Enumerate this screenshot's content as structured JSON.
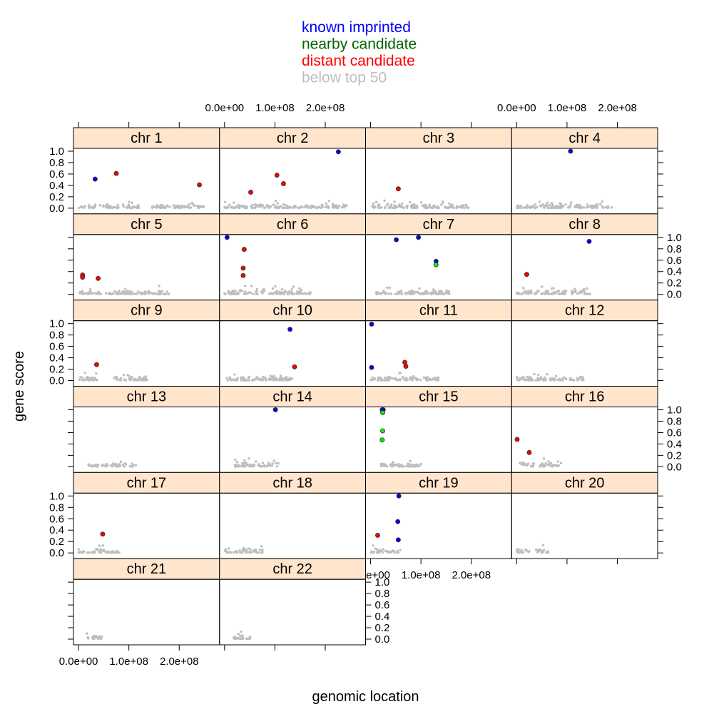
{
  "chart_data": {
    "type": "scatter",
    "layout": {
      "columns": 4,
      "rows": 6
    },
    "xlabel": "genomic location",
    "ylabel": "gene score",
    "xlim": [
      -10000000.0,
      280000000.0
    ],
    "ylim": [
      -0.1,
      1.05
    ],
    "x_ticks": [
      0,
      100000000,
      200000000
    ],
    "x_tick_labels": [
      "0.0e+00",
      "1.0e+08",
      "2.0e+08"
    ],
    "y_ticks": [
      0.0,
      0.2,
      0.4,
      0.6,
      0.8,
      1.0
    ],
    "y_tick_labels": [
      "0.0",
      "0.2",
      "0.4",
      "0.6",
      "0.8",
      "1.0"
    ],
    "strip_color": "#ffe5cc",
    "legend_position": "top",
    "legend": [
      {
        "label": "known imprinted",
        "color": "#0000ff"
      },
      {
        "label": "nearby candidate",
        "color": "#006400"
      },
      {
        "label": "distant candidate",
        "color": "#ff0000"
      },
      {
        "label": "below top 50",
        "color": "#bebebe"
      }
    ],
    "point_colors": {
      "known": "#0000ff",
      "nearby": "#00ff00",
      "distant": "#ff0000",
      "below": "#bebebe"
    },
    "panels": [
      {
        "label": "chr 1",
        "length": 249000000,
        "points": [
          [
            33000000,
            0.51,
            "known"
          ],
          [
            75000000,
            0.61,
            "distant"
          ],
          [
            240000000,
            0.41,
            "distant"
          ]
        ],
        "gaps": [
          [
            120000000,
            145000000
          ]
        ]
      },
      {
        "label": "chr 2",
        "length": 243000000,
        "points": [
          [
            226000000,
            0.99,
            "known"
          ],
          [
            52000000,
            0.28,
            "distant"
          ],
          [
            104000000,
            0.58,
            "distant"
          ],
          [
            117000000,
            0.43,
            "distant"
          ]
        ],
        "gaps": []
      },
      {
        "label": "chr 3",
        "length": 198000000,
        "points": [
          [
            55000000,
            0.34,
            "distant"
          ]
        ],
        "gaps": []
      },
      {
        "label": "chr 4",
        "length": 191000000,
        "points": [
          [
            107000000,
            1.0,
            "known"
          ]
        ],
        "gaps": []
      },
      {
        "label": "chr 5",
        "length": 181000000,
        "points": [
          [
            8000000,
            0.34,
            "distant"
          ],
          [
            8000000,
            0.3,
            "distant"
          ],
          [
            39000000,
            0.28,
            "distant"
          ]
        ],
        "gaps": [
          [
            46000000,
            50000000
          ]
        ]
      },
      {
        "label": "chr 6",
        "length": 171000000,
        "points": [
          [
            5000000,
            1.0,
            "known"
          ],
          [
            39000000,
            0.79,
            "distant"
          ],
          [
            37000000,
            0.46,
            "distant"
          ],
          [
            37000000,
            0.33,
            "distant"
          ]
        ],
        "gaps": [
          [
            58000000,
            62000000
          ]
        ]
      },
      {
        "label": "chr 7",
        "length": 159000000,
        "points": [
          [
            51000000,
            0.96,
            "known"
          ],
          [
            95000000,
            1.0,
            "known"
          ],
          [
            130000000,
            0.58,
            "known"
          ],
          [
            130000000,
            0.52,
            "nearby"
          ]
        ],
        "gaps": []
      },
      {
        "label": "chr 8",
        "length": 146000000,
        "points": [
          [
            20000000,
            0.35,
            "distant"
          ],
          [
            144000000,
            0.93,
            "known"
          ]
        ],
        "gaps": []
      },
      {
        "label": "chr 9",
        "length": 141000000,
        "points": [
          [
            36000000,
            0.28,
            "distant"
          ]
        ],
        "gaps": [
          [
            40000000,
            68000000
          ]
        ]
      },
      {
        "label": "chr 10",
        "length": 135000000,
        "points": [
          [
            130000000,
            0.9,
            "known"
          ],
          [
            139000000,
            0.24,
            "distant"
          ]
        ],
        "gaps": []
      },
      {
        "label": "chr 11",
        "length": 135000000,
        "points": [
          [
            2000000,
            0.99,
            "known"
          ],
          [
            2000000,
            0.23,
            "known"
          ],
          [
            68000000,
            0.32,
            "distant"
          ],
          [
            70000000,
            0.25,
            "distant"
          ]
        ],
        "gaps": []
      },
      {
        "label": "chr 12",
        "length": 133000000,
        "points": [],
        "gaps": []
      },
      {
        "label": "chr 13",
        "length": 115000000,
        "points": [],
        "gaps": [
          [
            0,
            19000000
          ],
          [
            40000000,
            45000000
          ]
        ]
      },
      {
        "label": "chr 14",
        "length": 107000000,
        "points": [
          [
            101000000,
            1.0,
            "known"
          ]
        ],
        "gaps": [
          [
            0,
            20000000
          ]
        ]
      },
      {
        "label": "chr 15",
        "length": 102000000,
        "points": [
          [
            23000000,
            1.0,
            "known"
          ],
          [
            25000000,
            1.0,
            "known"
          ],
          [
            24000000,
            0.95,
            "nearby"
          ],
          [
            24000000,
            0.63,
            "nearby"
          ],
          [
            23000000,
            0.47,
            "nearby"
          ]
        ],
        "gaps": [
          [
            0,
            20000000
          ]
        ]
      },
      {
        "label": "chr 16",
        "length": 90000000,
        "points": [
          [
            1000000,
            0.48,
            "distant"
          ],
          [
            25000000,
            0.25,
            "distant"
          ]
        ],
        "gaps": [
          [
            36000000,
            46000000
          ]
        ]
      },
      {
        "label": "chr 17",
        "length": 81000000,
        "points": [
          [
            48000000,
            0.33,
            "distant"
          ]
        ],
        "gaps": []
      },
      {
        "label": "chr 18",
        "length": 78000000,
        "points": [],
        "gaps": [
          [
            15000000,
            18000000
          ]
        ]
      },
      {
        "label": "chr 19",
        "length": 59000000,
        "points": [
          [
            56000000,
            1.0,
            "known"
          ],
          [
            54000000,
            0.55,
            "known"
          ],
          [
            55000000,
            0.23,
            "known"
          ],
          [
            14000000,
            0.31,
            "distant"
          ]
        ],
        "gaps": [
          [
            25000000,
            28000000
          ]
        ]
      },
      {
        "label": "chr 20",
        "length": 63000000,
        "points": [],
        "gaps": [
          [
            26000000,
            30000000
          ]
        ]
      },
      {
        "label": "chr 21",
        "length": 48000000,
        "points": [],
        "gaps": [
          [
            0,
            15000000
          ]
        ]
      },
      {
        "label": "chr 22",
        "length": 51000000,
        "points": [],
        "gaps": [
          [
            0,
            16000000
          ]
        ]
      }
    ]
  }
}
